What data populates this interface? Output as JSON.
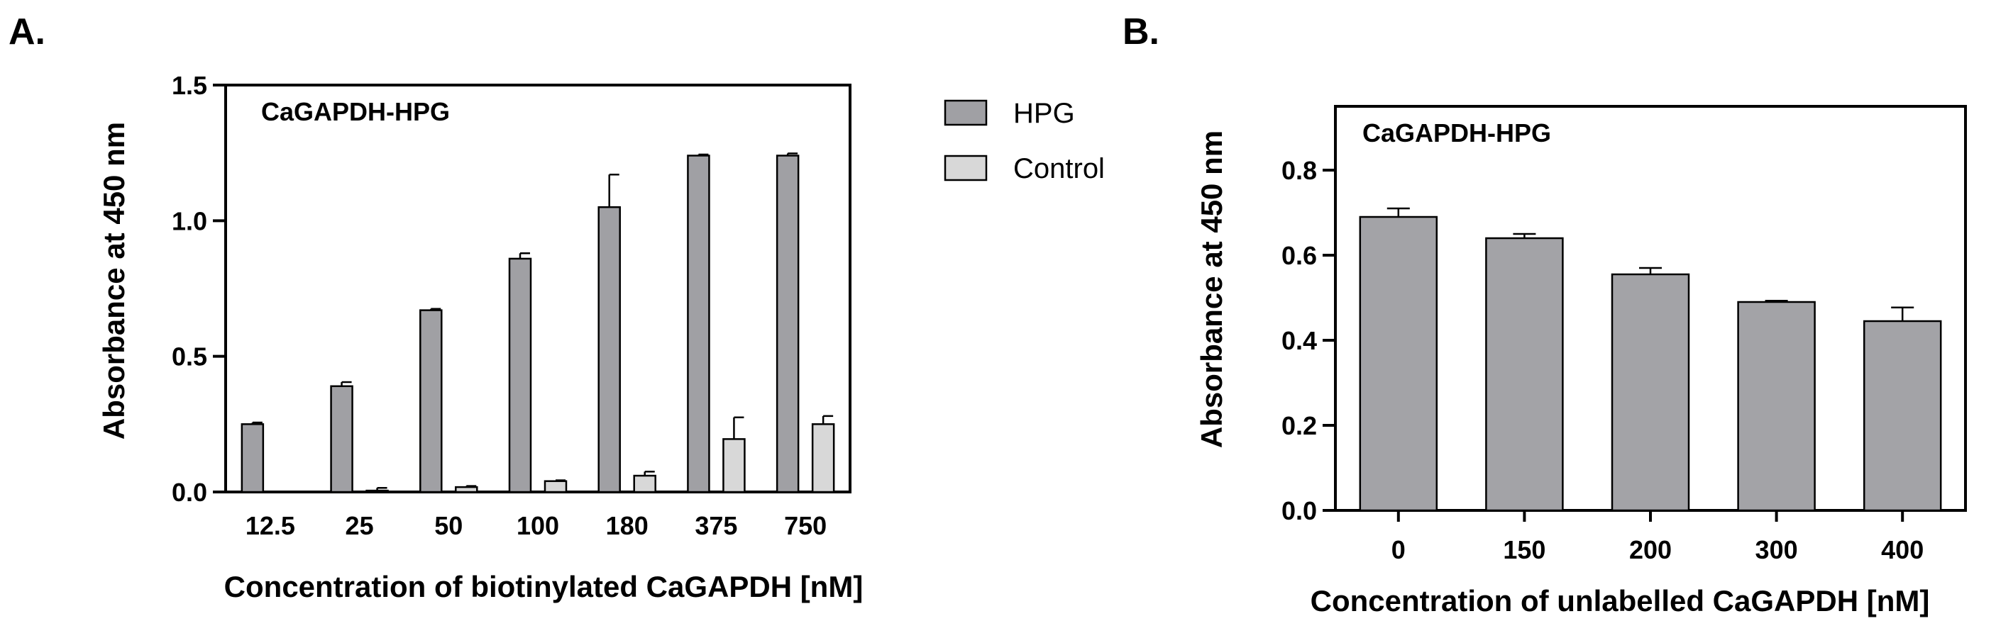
{
  "panels": [
    {
      "letter": "A.",
      "chart_data": {
        "type": "bar",
        "title": "CaGAPDH-HPG",
        "xlabel": "Concentration of biotinylated CaGAPDH [nM]",
        "ylabel": "Absorbance at 450 nm",
        "categories": [
          "12.5",
          "25",
          "50",
          "100",
          "180",
          "375",
          "750"
        ],
        "ylim": [
          0,
          1.5
        ],
        "yticks": [
          0.0,
          0.5,
          1.0,
          1.5
        ],
        "ytick_labels": [
          "0.0",
          "0.5",
          "1.0",
          "1.5"
        ],
        "legend_position": "right",
        "series": [
          {
            "name": "HPG",
            "color": "#a0a0a4",
            "values": [
              0.25,
              0.39,
              0.67,
              0.86,
              1.05,
              1.24,
              1.24
            ],
            "errors": [
              0.006,
              0.015,
              0.005,
              0.02,
              0.12,
              0.004,
              0.008
            ]
          },
          {
            "name": "Control",
            "color": "#d8d8d8",
            "values": [
              0.0,
              0.005,
              0.018,
              0.04,
              0.06,
              0.195,
              0.25
            ],
            "errors": [
              0.0,
              0.01,
              0.004,
              0.003,
              0.015,
              0.08,
              0.03
            ]
          }
        ]
      }
    },
    {
      "letter": "B.",
      "chart_data": {
        "type": "bar",
        "title": "CaGAPDH-HPG",
        "xlabel": "Concentration of unlabelled CaGAPDH [nM]",
        "ylabel": "Absorbance at 450 nm",
        "categories": [
          "0",
          "150",
          "200",
          "300",
          "400"
        ],
        "ylim": [
          0,
          0.95
        ],
        "yticks": [
          0.0,
          0.2,
          0.4,
          0.6,
          0.8
        ],
        "ytick_labels": [
          "0.0",
          "0.2",
          "0.4",
          "0.6",
          "0.8"
        ],
        "series": [
          {
            "color": "#a3a3a7",
            "values": [
              0.69,
              0.64,
              0.555,
              0.49,
              0.445
            ],
            "errors": [
              0.02,
              0.01,
              0.015,
              0.003,
              0.032
            ]
          }
        ]
      }
    }
  ]
}
